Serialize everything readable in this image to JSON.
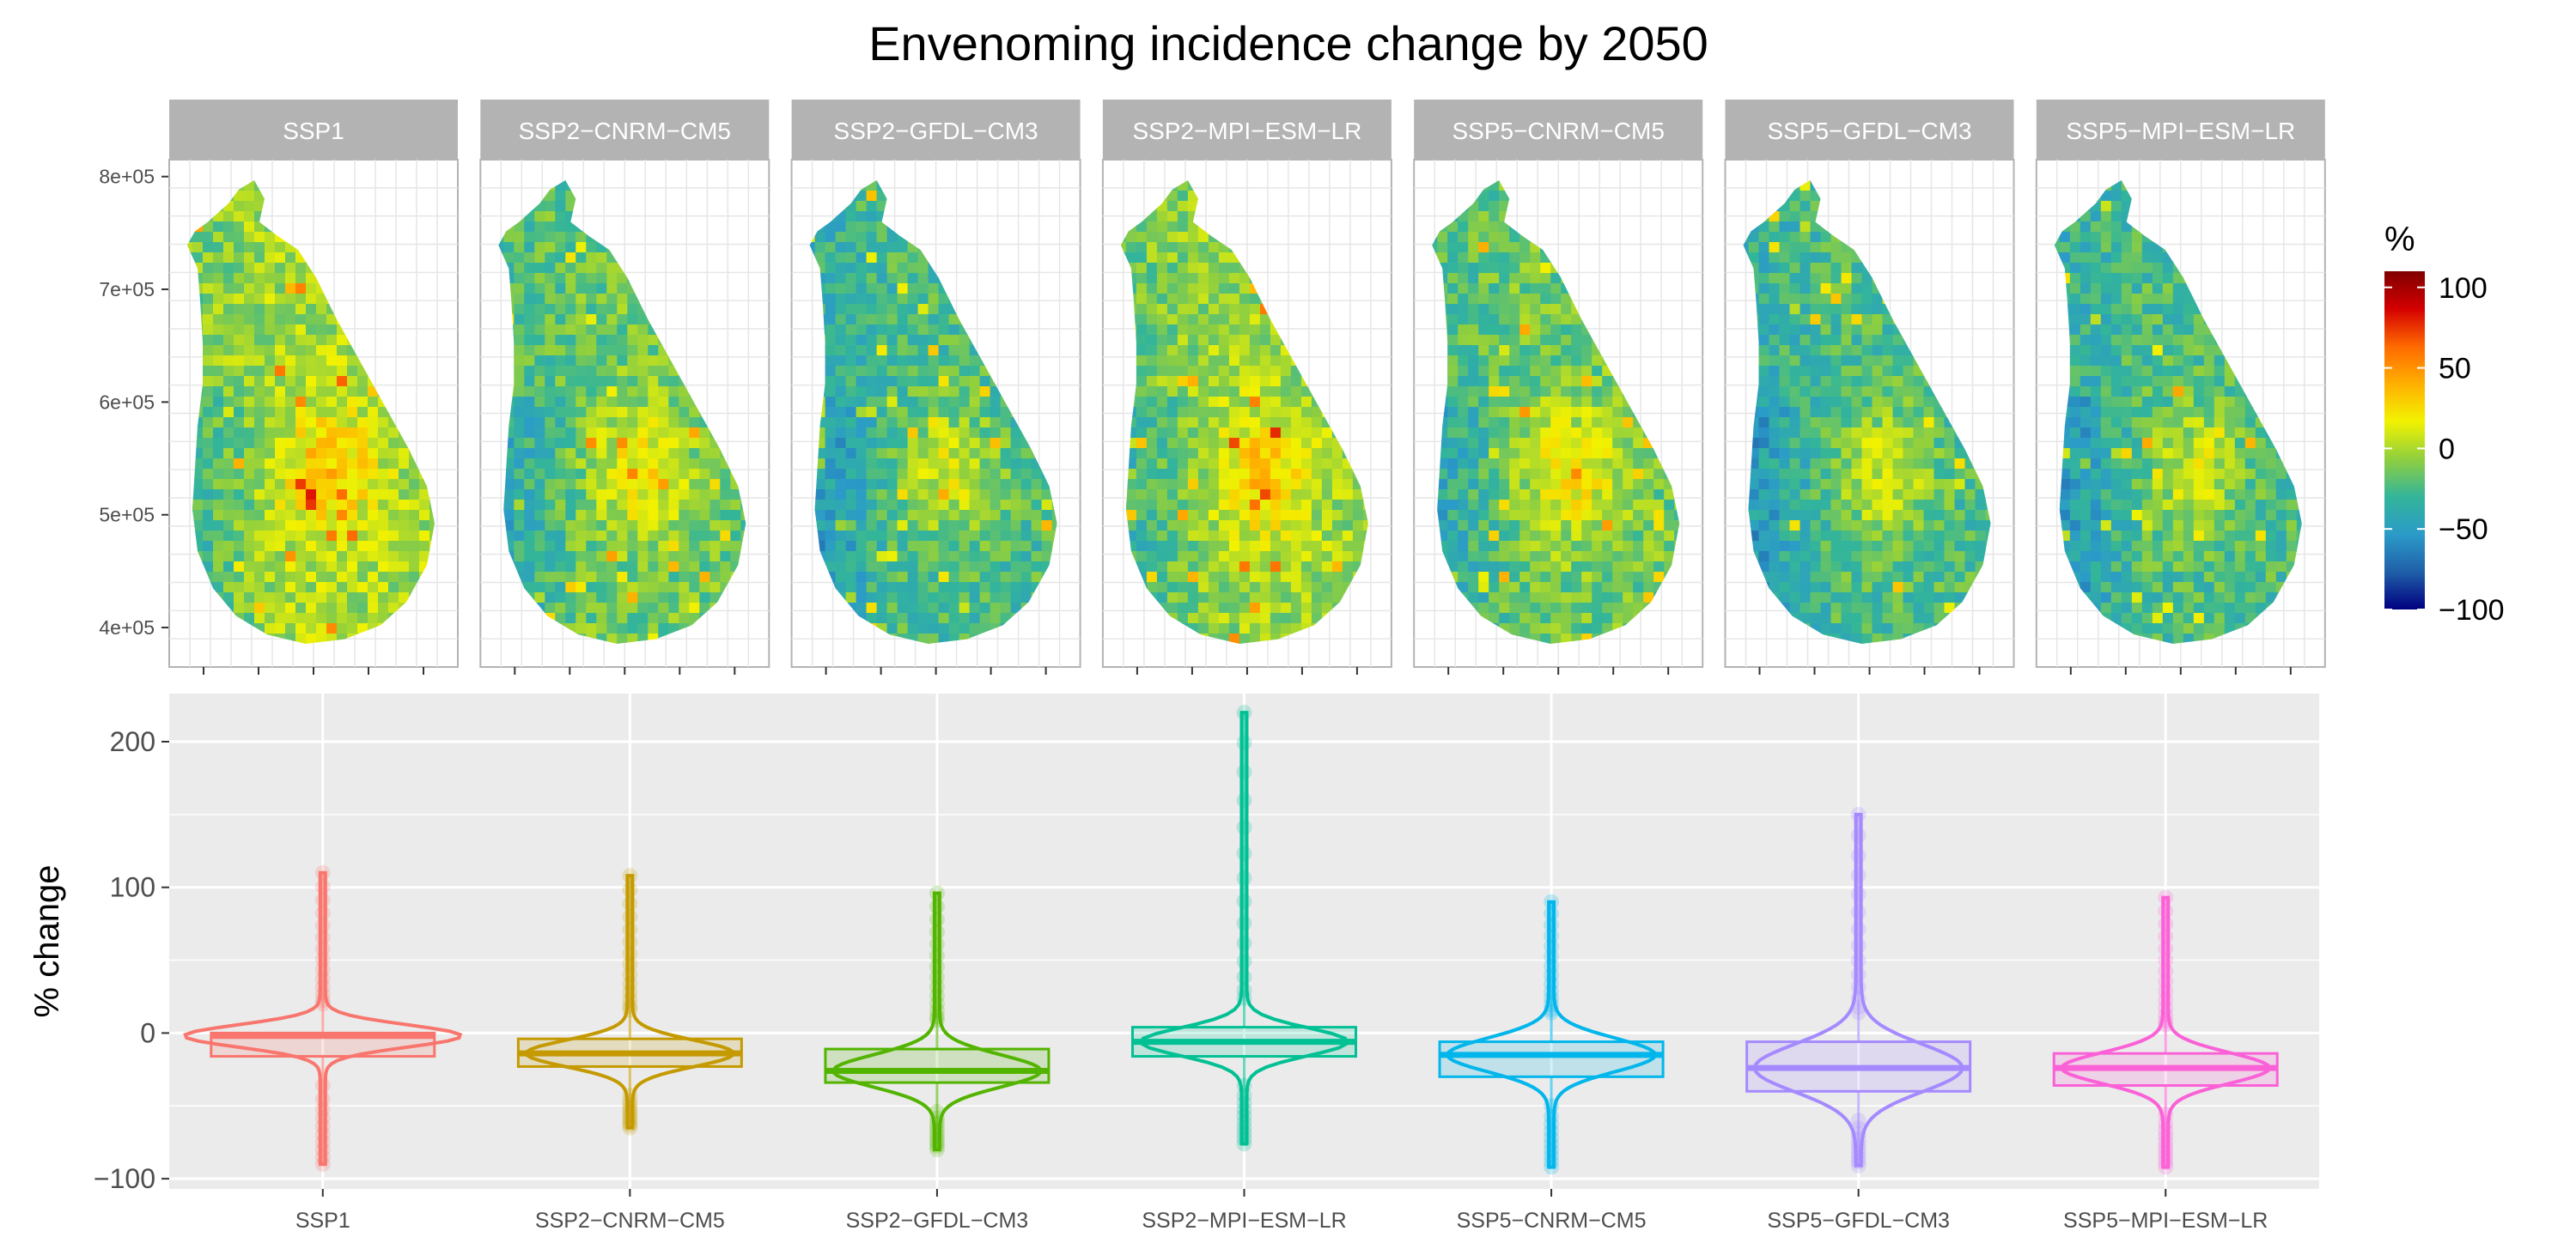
{
  "title": "Envenoming incidence change by 2050",
  "scenarios": [
    "SSP1",
    "SSP2−CNRM−CM5",
    "SSP2−GFDL−CM3",
    "SSP2−MPI−ESM−LR",
    "SSP5−CNRM−CM5",
    "SSP5−GFDL−CM3",
    "SSP5−MPI−ESM−LR"
  ],
  "colors": {
    "series": [
      "#F8766D",
      "#C49A00",
      "#53B400",
      "#00C094",
      "#00B6EB",
      "#A58AFF",
      "#FB61D7"
    ],
    "strip": "#b3b3b3",
    "panel_bg": "#ebebeb",
    "grid": "#ffffff",
    "map_grid": "#e6e6e6",
    "colorbar": [
      "#00007f",
      "#1f5fa8",
      "#2b9bc8",
      "#33b59a",
      "#8fcf3f",
      "#f2f200",
      "#ffb000",
      "#ff6a00",
      "#d40000",
      "#7f0000"
    ]
  },
  "icons": {
    "sri-lanka-map": "map of Sri Lanka island shaded by percent change"
  },
  "chart_data": [
    {
      "type": "heatmap",
      "facets": [
        "SSP1",
        "SSP2−CNRM−CM5",
        "SSP2−GFDL−CM3",
        "SSP2−MPI−ESM−LR",
        "SSP5−CNRM−CM5",
        "SSP5−GFDL−CM3",
        "SSP5−MPI−ESM−LR"
      ],
      "y_ticks": [
        "8e+05",
        "7e+05",
        "6e+05",
        "5e+05",
        "4e+05"
      ],
      "y_tick_values": [
        800000,
        700000,
        600000,
        500000,
        400000
      ],
      "ylim": [
        365000,
        815000
      ],
      "legend": {
        "title": "%",
        "ticks": [
          "100",
          "50",
          "0",
          "−50",
          "−100"
        ],
        "range": [
          -100,
          110
        ],
        "placement": "right"
      },
      "typical_change_pct": [
        -2,
        -15,
        -25,
        -5,
        -15,
        -25,
        -25
      ]
    },
    {
      "type": "violin-boxplot",
      "ylabel": "% change",
      "y_ticks": [
        "200",
        "100",
        "0",
        "−100"
      ],
      "y_tick_values": [
        200,
        100,
        0,
        -100
      ],
      "ylim": [
        -107,
        233
      ],
      "grid": true,
      "categories": [
        "SSP1",
        "SSP2−CNRM−CM5",
        "SSP2−GFDL−CM3",
        "SSP2−MPI−ESM−LR",
        "SSP5−CNRM−CM5",
        "SSP5−GFDL−CM3",
        "SSP5−MPI−ESM−LR"
      ],
      "series": [
        {
          "name": "SSP1",
          "q1": -16,
          "median": -2,
          "q3": 0,
          "min": -90,
          "max": 110
        },
        {
          "name": "SSP2−CNRM−CM5",
          "q1": -23,
          "median": -14,
          "q3": -4,
          "min": -65,
          "max": 108
        },
        {
          "name": "SSP2−GFDL−CM3",
          "q1": -34,
          "median": -26,
          "q3": -11,
          "min": -80,
          "max": 96
        },
        {
          "name": "SSP2−MPI−ESM−LR",
          "q1": -16,
          "median": -6,
          "q3": 4,
          "min": -76,
          "max": 220
        },
        {
          "name": "SSP5−CNRM−CM5",
          "q1": -30,
          "median": -15,
          "q3": -6,
          "min": -92,
          "max": 90
        },
        {
          "name": "SSP5−GFDL−CM3",
          "q1": -40,
          "median": -24,
          "q3": -6,
          "min": -91,
          "max": 150
        },
        {
          "name": "SSP5−MPI−ESM−LR",
          "q1": -36,
          "median": -24,
          "q3": -14,
          "min": -92,
          "max": 93
        }
      ]
    }
  ]
}
